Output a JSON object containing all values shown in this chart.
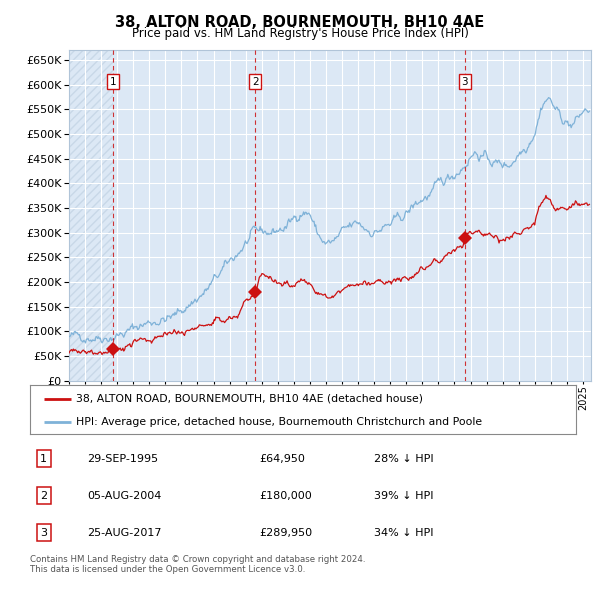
{
  "title": "38, ALTON ROAD, BOURNEMOUTH, BH10 4AE",
  "subtitle": "Price paid vs. HM Land Registry's House Price Index (HPI)",
  "background_color": "#ffffff",
  "plot_bg_color": "#dce8f5",
  "hpi_color": "#7fb2d8",
  "price_color": "#cc1111",
  "sale_marker_color": "#cc1111",
  "vline_color": "#cc1111",
  "hatch_color": "#c8d8e8",
  "grid_color": "#ffffff",
  "sales": [
    {
      "date_num": 1995.75,
      "price": 64950,
      "label": "1",
      "date_str": "29-SEP-1995",
      "pct": "28% ↓ HPI"
    },
    {
      "date_num": 2004.59,
      "price": 180000,
      "label": "2",
      "date_str": "05-AUG-2004",
      "pct": "39% ↓ HPI"
    },
    {
      "date_num": 2017.65,
      "price": 289950,
      "label": "3",
      "date_str": "25-AUG-2017",
      "pct": "34% ↓ HPI"
    }
  ],
  "legend_line1": "38, ALTON ROAD, BOURNEMOUTH, BH10 4AE (detached house)",
  "legend_line2": "HPI: Average price, detached house, Bournemouth Christchurch and Poole",
  "footer": "Contains HM Land Registry data © Crown copyright and database right 2024.\nThis data is licensed under the Open Government Licence v3.0.",
  "ylim": [
    0,
    670000
  ],
  "xlim_start": 1993.0,
  "xlim_end": 2025.5,
  "ytick_step": 50000,
  "hpi_anchors": [
    [
      1993.0,
      88000
    ],
    [
      1994.0,
      91000
    ],
    [
      1995.0,
      90000
    ],
    [
      1995.75,
      90500
    ],
    [
      1996.5,
      96000
    ],
    [
      1997.5,
      113000
    ],
    [
      1998.5,
      122000
    ],
    [
      1999.5,
      128000
    ],
    [
      2000.5,
      155000
    ],
    [
      2001.5,
      180000
    ],
    [
      2002.5,
      220000
    ],
    [
      2003.5,
      258000
    ],
    [
      2004.0,
      278000
    ],
    [
      2004.5,
      295000
    ],
    [
      2005.0,
      302000
    ],
    [
      2005.5,
      300000
    ],
    [
      2006.5,
      310000
    ],
    [
      2007.5,
      345000
    ],
    [
      2008.0,
      340000
    ],
    [
      2008.5,
      295000
    ],
    [
      2009.0,
      277000
    ],
    [
      2009.5,
      280000
    ],
    [
      2010.0,
      298000
    ],
    [
      2010.5,
      310000
    ],
    [
      2011.0,
      318000
    ],
    [
      2011.5,
      308000
    ],
    [
      2012.0,
      302000
    ],
    [
      2012.5,
      308000
    ],
    [
      2013.0,
      315000
    ],
    [
      2013.5,
      325000
    ],
    [
      2014.0,
      338000
    ],
    [
      2014.5,
      355000
    ],
    [
      2015.0,
      368000
    ],
    [
      2015.5,
      378000
    ],
    [
      2016.0,
      393000
    ],
    [
      2016.5,
      408000
    ],
    [
      2017.0,
      420000
    ],
    [
      2017.5,
      435000
    ],
    [
      2017.65,
      440000
    ],
    [
      2018.0,
      457000
    ],
    [
      2018.3,
      463000
    ],
    [
      2018.6,
      458000
    ],
    [
      2018.9,
      452000
    ],
    [
      2019.3,
      445000
    ],
    [
      2019.7,
      440000
    ],
    [
      2020.0,
      438000
    ],
    [
      2020.3,
      436000
    ],
    [
      2020.6,
      445000
    ],
    [
      2021.0,
      462000
    ],
    [
      2021.5,
      478000
    ],
    [
      2022.0,
      510000
    ],
    [
      2022.5,
      565000
    ],
    [
      2022.8,
      575000
    ],
    [
      2023.0,
      568000
    ],
    [
      2023.3,
      550000
    ],
    [
      2023.6,
      535000
    ],
    [
      2024.0,
      525000
    ],
    [
      2024.3,
      518000
    ],
    [
      2024.7,
      530000
    ],
    [
      2025.0,
      545000
    ],
    [
      2025.4,
      548000
    ]
  ],
  "price_anchors": [
    [
      1993.0,
      58000
    ],
    [
      1994.0,
      60000
    ],
    [
      1995.0,
      63000
    ],
    [
      1995.75,
      64950
    ],
    [
      1996.0,
      65500
    ],
    [
      1996.5,
      67000
    ],
    [
      1997.0,
      71000
    ],
    [
      1997.5,
      76000
    ],
    [
      1998.0,
      81000
    ],
    [
      1998.5,
      85000
    ],
    [
      1999.0,
      89000
    ],
    [
      1999.5,
      93000
    ],
    [
      2000.0,
      96000
    ],
    [
      2000.5,
      100000
    ],
    [
      2001.0,
      105000
    ],
    [
      2001.5,
      110000
    ],
    [
      2002.0,
      116000
    ],
    [
      2002.5,
      122000
    ],
    [
      2003.0,
      127000
    ],
    [
      2003.5,
      130000
    ],
    [
      2004.0,
      170000
    ],
    [
      2004.59,
      180000
    ],
    [
      2005.0,
      215000
    ],
    [
      2005.3,
      210000
    ],
    [
      2005.7,
      205000
    ],
    [
      2006.0,
      198000
    ],
    [
      2006.5,
      192000
    ],
    [
      2007.0,
      195000
    ],
    [
      2007.5,
      208000
    ],
    [
      2008.0,
      208000
    ],
    [
      2008.3,
      185000
    ],
    [
      2008.7,
      175000
    ],
    [
      2009.0,
      168000
    ],
    [
      2009.5,
      170000
    ],
    [
      2010.0,
      178000
    ],
    [
      2010.5,
      185000
    ],
    [
      2011.0,
      192000
    ],
    [
      2011.5,
      196000
    ],
    [
      2012.0,
      198000
    ],
    [
      2012.5,
      196000
    ],
    [
      2013.0,
      196000
    ],
    [
      2013.5,
      200000
    ],
    [
      2014.0,
      205000
    ],
    [
      2014.5,
      213000
    ],
    [
      2015.0,
      225000
    ],
    [
      2015.5,
      233000
    ],
    [
      2016.0,
      242000
    ],
    [
      2016.5,
      252000
    ],
    [
      2017.0,
      262000
    ],
    [
      2017.5,
      272000
    ],
    [
      2017.65,
      289950
    ],
    [
      2018.0,
      300000
    ],
    [
      2018.3,
      302000
    ],
    [
      2018.6,
      298000
    ],
    [
      2018.9,
      293000
    ],
    [
      2019.2,
      295000
    ],
    [
      2019.5,
      293000
    ],
    [
      2019.8,
      288000
    ],
    [
      2020.1,
      283000
    ],
    [
      2020.4,
      288000
    ],
    [
      2020.8,
      296000
    ],
    [
      2021.2,
      307000
    ],
    [
      2021.6,
      316000
    ],
    [
      2022.0,
      325000
    ],
    [
      2022.3,
      355000
    ],
    [
      2022.7,
      375000
    ],
    [
      2023.0,
      368000
    ],
    [
      2023.3,
      347000
    ],
    [
      2023.6,
      350000
    ],
    [
      2024.0,
      345000
    ],
    [
      2024.4,
      350000
    ],
    [
      2024.8,
      355000
    ],
    [
      2025.2,
      360000
    ],
    [
      2025.4,
      358000
    ]
  ]
}
